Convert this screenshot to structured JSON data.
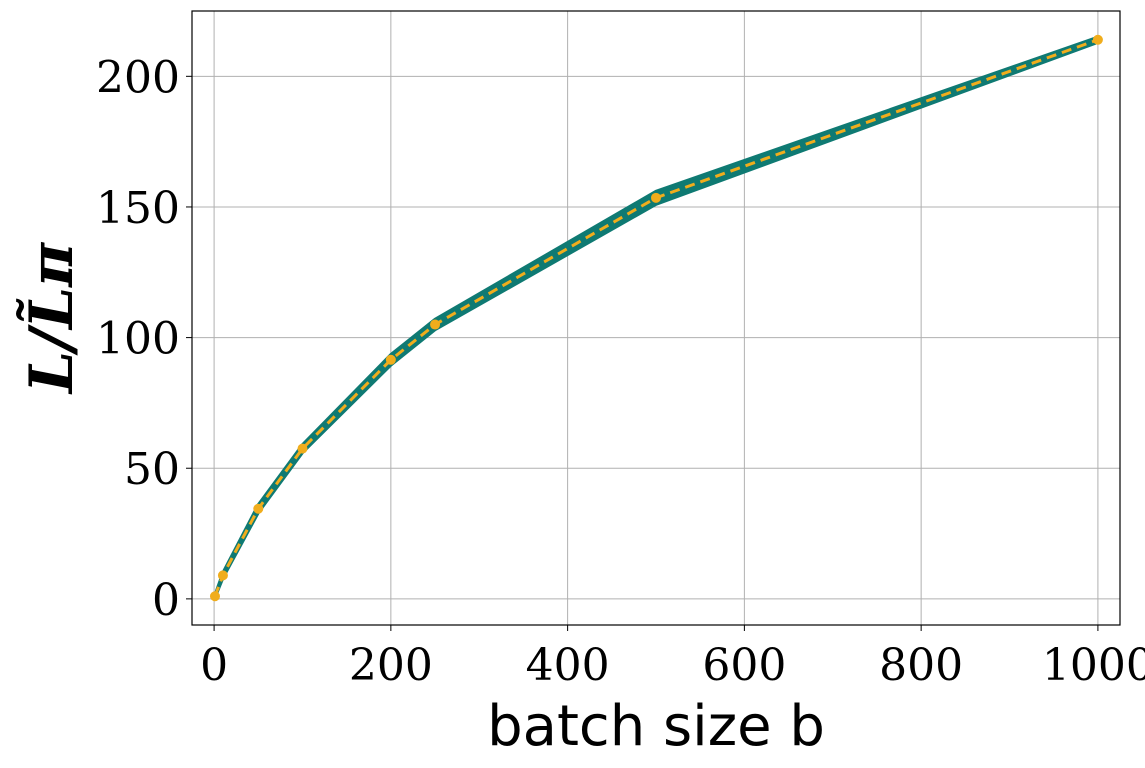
{
  "chart_data": {
    "type": "line",
    "xlabel": "batch size b",
    "ylabel": "L/L̃π",
    "xlim": [
      -25,
      1025
    ],
    "ylim": [
      -10,
      225
    ],
    "xticks": [
      0,
      200,
      400,
      600,
      800,
      1000
    ],
    "yticks": [
      0,
      50,
      100,
      150,
      200
    ],
    "grid": true,
    "series": [
      {
        "x": [
          1,
          10,
          50,
          100,
          200,
          250,
          500,
          1000
        ],
        "y": [
          1,
          9,
          34.5,
          57.5,
          91.5,
          105,
          153.5,
          214
        ],
        "band_halfwidth": [
          0.5,
          1,
          1.5,
          1.5,
          2,
          2,
          2.5,
          1
        ],
        "color": "#f0ad1c",
        "band_color": "#0f7a73",
        "linestyle": "dashed",
        "marker": "circle"
      }
    ]
  }
}
